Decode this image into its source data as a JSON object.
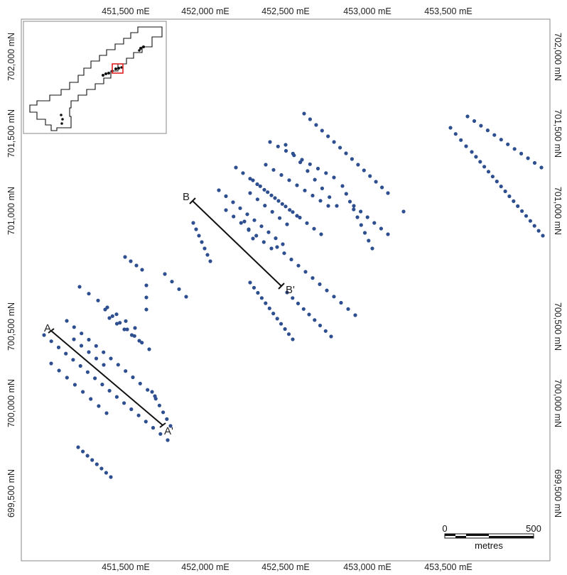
{
  "map": {
    "easting_labels": [
      "451,500 mE",
      "452,000 mE",
      "452,500 mE",
      "453,000 mE",
      "453,500 mE"
    ],
    "northing_labels": [
      "702,000 mN",
      "701,500 mN",
      "701,000 mN",
      "700,500 mN",
      "700,000 mN",
      "699,500 mN"
    ],
    "point_color": "#2e4f8f",
    "line_color": "#111111",
    "frame_color": "#888888"
  },
  "sections": [
    {
      "name": "A",
      "start_label": "A",
      "end_label": "A'"
    },
    {
      "name": "B",
      "start_label": "B",
      "end_label": "B'"
    }
  ],
  "scale_bar": {
    "start_label": "0",
    "end_label": "500",
    "unit_label": "metres"
  },
  "inset": {
    "highlight_color": "#e02020",
    "outline_color": "#111111"
  }
}
